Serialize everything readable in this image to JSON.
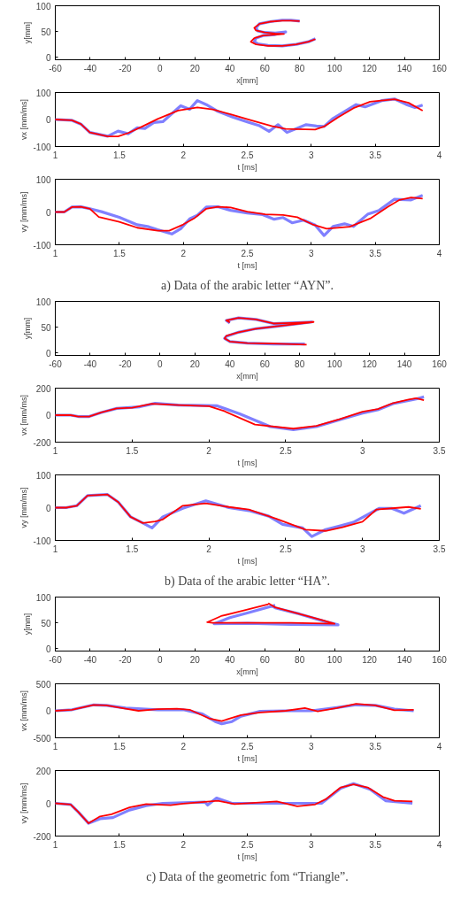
{
  "chart_data": [
    {
      "type": "line",
      "xlabel": "x[mm]",
      "ylabel": "y[mm]",
      "xlim": [
        -60,
        160
      ],
      "xticks": [
        -60,
        -40,
        -20,
        0,
        20,
        40,
        60,
        80,
        100,
        120,
        140,
        160
      ],
      "ylim": [
        -5,
        100
      ],
      "yticks": [
        0,
        50,
        100
      ],
      "series": [
        {
          "color": "#8080ff",
          "x": [
            80,
            75,
            70,
            63,
            57,
            55,
            56,
            60,
            66,
            72,
            66,
            59,
            55,
            54,
            56,
            62,
            70,
            78,
            85,
            89
          ],
          "values": [
            70,
            72,
            72,
            69,
            65,
            57,
            51,
            48,
            47,
            49,
            44,
            42,
            37,
            30,
            26,
            23,
            22,
            25,
            30,
            36
          ]
        },
        {
          "color": "#ff0000",
          "x": [
            80,
            75,
            70,
            63,
            57,
            54,
            55,
            60,
            66,
            71,
            66,
            59,
            54,
            52,
            55,
            62,
            70,
            78,
            85,
            89
          ],
          "values": [
            70,
            71,
            71,
            69,
            65,
            57,
            52,
            48,
            46,
            45,
            44,
            42,
            37,
            30,
            25,
            22,
            22,
            25,
            30,
            35
          ]
        }
      ]
    },
    {
      "type": "line",
      "xlabel": "t [ms]",
      "ylabel": "vx [mm/ms]",
      "xlim": [
        1,
        4
      ],
      "xticks": [
        1,
        1.5,
        2,
        2.5,
        3,
        3.5,
        4
      ],
      "ylim": [
        -100,
        100
      ],
      "yticks": [
        -100,
        0,
        100
      ],
      "series": [
        {
          "color": "#8080ff",
          "x": [
            1,
            1.13,
            1.2,
            1.27,
            1.41,
            1.49,
            1.57,
            1.64,
            1.7,
            1.77,
            1.84,
            1.98,
            2.05,
            2.11,
            2.18,
            2.27,
            2.39,
            2.5,
            2.59,
            2.67,
            2.74,
            2.81,
            2.96,
            3.04,
            3.1,
            3.17,
            3.35,
            3.42,
            3.55,
            3.65,
            3.74,
            3.81,
            3.87
          ],
          "values": [
            0,
            -3,
            -17,
            -48,
            -62,
            -43,
            -53,
            -31,
            -33,
            -11,
            -8,
            51,
            38,
            70,
            55,
            30,
            8,
            -9,
            -22,
            -44,
            -19,
            -48,
            -19,
            -24,
            -26,
            4,
            55,
            47,
            70,
            76,
            56,
            44,
            53
          ]
        },
        {
          "color": "#ff0000",
          "x": [
            1,
            1.13,
            1.2,
            1.27,
            1.41,
            1.49,
            1.57,
            1.68,
            1.8,
            1.96,
            2.11,
            2.23,
            2.37,
            2.53,
            2.69,
            2.8,
            3.03,
            3.1,
            3.21,
            3.33,
            3.46,
            3.65,
            3.76,
            3.87
          ],
          "values": [
            0,
            -3,
            -17,
            -48,
            -63,
            -63,
            -50,
            -26,
            2,
            33,
            45,
            37,
            19,
            -3,
            -24,
            -35,
            -37,
            -26,
            8,
            42,
            66,
            75,
            62,
            33
          ]
        }
      ]
    },
    {
      "type": "line",
      "xlabel": "t [ms]",
      "ylabel": "vy [mm/ms]",
      "xlim": [
        1,
        4
      ],
      "xticks": [
        1,
        1.5,
        2,
        2.5,
        3,
        3.5,
        4
      ],
      "ylim": [
        -100,
        100
      ],
      "yticks": [
        -100,
        0,
        100
      ],
      "annotations": [
        "a) Data of the arabic letter “AYN”."
      ],
      "series": [
        {
          "color": "#8080ff",
          "x": [
            1,
            1.07,
            1.13,
            1.2,
            1.27,
            1.36,
            1.5,
            1.64,
            1.73,
            1.8,
            1.91,
            1.98,
            2.05,
            2.11,
            2.18,
            2.27,
            2.37,
            2.5,
            2.62,
            2.71,
            2.78,
            2.85,
            2.94,
            3.03,
            3.1,
            3.17,
            3.26,
            3.33,
            3.44,
            3.53,
            3.65,
            3.78,
            3.87
          ],
          "values": [
            0,
            0,
            15,
            16,
            10,
            1,
            -16,
            -39,
            -45,
            -54,
            -67,
            -51,
            -21,
            -10,
            15,
            16,
            5,
            -3,
            -8,
            -22,
            -17,
            -33,
            -25,
            -40,
            -72,
            -44,
            -36,
            -44,
            -7,
            5,
            39,
            37,
            51
          ]
        },
        {
          "color": "#ff0000",
          "x": [
            1,
            1.07,
            1.13,
            1.2,
            1.27,
            1.34,
            1.5,
            1.64,
            1.8,
            1.89,
            2,
            2.09,
            2.18,
            2.27,
            2.37,
            2.5,
            2.64,
            2.78,
            2.89,
            3.01,
            3.12,
            3.3,
            3.46,
            3.6,
            3.69,
            3.78,
            3.87
          ],
          "values": [
            0,
            0,
            15,
            16,
            10,
            -15,
            -30,
            -48,
            -57,
            -57,
            -38,
            -18,
            10,
            16,
            14,
            1,
            -7,
            -9,
            -16,
            -38,
            -51,
            -45,
            -20,
            16,
            37,
            44,
            41
          ]
        }
      ]
    },
    {
      "type": "line",
      "xlabel": "x[mm]",
      "ylabel": "y[mm]",
      "xlim": [
        -60,
        160
      ],
      "xticks": [
        -60,
        -40,
        -20,
        0,
        20,
        40,
        60,
        80,
        100,
        120,
        140,
        160
      ],
      "ylim": [
        -5,
        100
      ],
      "yticks": [
        0,
        50,
        100
      ],
      "series": [
        {
          "color": "#8080ff",
          "x": [
            40,
            38,
            45,
            55,
            65,
            75,
            87,
            70,
            55,
            45,
            38,
            37,
            40,
            50,
            65,
            83
          ],
          "values": [
            58,
            63,
            68,
            65,
            57,
            58,
            60,
            53,
            47,
            40,
            32,
            28,
            22,
            19,
            17,
            17
          ]
        },
        {
          "color": "#ff0000",
          "x": [
            40,
            38,
            45,
            55,
            65,
            75,
            88,
            70,
            55,
            45,
            38,
            37,
            40,
            50,
            65,
            84
          ],
          "values": [
            59,
            63,
            68,
            65,
            57,
            58,
            60,
            53,
            47,
            40,
            33,
            28,
            22,
            19,
            18,
            16
          ]
        }
      ]
    },
    {
      "type": "line",
      "xlabel": "t [ms]",
      "ylabel": "vx [mm/ms]",
      "xlim": [
        1,
        3.5
      ],
      "xticks": [
        1,
        1.5,
        2,
        2.5,
        3,
        3.5
      ],
      "ylim": [
        -200,
        200
      ],
      "yticks": [
        -200,
        0,
        200
      ],
      "series": [
        {
          "color": "#8080ff",
          "x": [
            1,
            1.1,
            1.15,
            1.22,
            1.3,
            1.4,
            1.55,
            1.65,
            1.8,
            2.05,
            2.2,
            2.4,
            2.55,
            2.7,
            2.85,
            3.0,
            3.1,
            3.2,
            3.35,
            3.4
          ],
          "values": [
            0,
            0,
            -10,
            -10,
            20,
            50,
            62,
            88,
            75,
            70,
            10,
            -85,
            -108,
            -85,
            -35,
            15,
            40,
            85,
            120,
            135
          ]
        },
        {
          "color": "#ff0000",
          "x": [
            1,
            1.1,
            1.15,
            1.22,
            1.3,
            1.4,
            1.5,
            1.63,
            1.8,
            2.0,
            2.1,
            2.3,
            2.55,
            2.7,
            2.85,
            3.0,
            3.1,
            3.2,
            3.3,
            3.35,
            3.4
          ],
          "values": [
            0,
            0,
            -10,
            -10,
            20,
            50,
            55,
            85,
            75,
            67,
            30,
            -70,
            -100,
            -80,
            -30,
            25,
            45,
            90,
            115,
            125,
            110
          ]
        }
      ]
    },
    {
      "type": "line",
      "xlabel": "t [ms]",
      "ylabel": "vy [mm/ms]",
      "xlim": [
        1,
        3.5
      ],
      "xticks": [
        1,
        1.5,
        2,
        2.5,
        3,
        3.5
      ],
      "ylim": [
        -100,
        100
      ],
      "yticks": [
        -100,
        0,
        100
      ],
      "annotations": [
        "b) Data of the arabic letter “HA”."
      ],
      "series": [
        {
          "color": "#8080ff",
          "x": [
            1,
            1.07,
            1.14,
            1.21,
            1.34,
            1.41,
            1.49,
            1.57,
            1.63,
            1.7,
            1.83,
            1.98,
            2.13,
            2.26,
            2.39,
            2.48,
            2.61,
            2.67,
            2.76,
            2.85,
            2.94,
            3.11,
            3.19,
            3.27,
            3.38
          ],
          "values": [
            0,
            0,
            6,
            37,
            40,
            17,
            -28,
            -47,
            -62,
            -28,
            -2,
            21,
            0,
            -9,
            -26,
            -51,
            -62,
            -88,
            -67,
            -56,
            -45,
            -2,
            -2,
            -17,
            6
          ]
        },
        {
          "color": "#ff0000",
          "x": [
            1,
            1.07,
            1.14,
            1.21,
            1.34,
            1.41,
            1.49,
            1.57,
            1.65,
            1.7,
            1.83,
            1.98,
            2.13,
            2.26,
            2.44,
            2.63,
            2.76,
            2.87,
            3.0,
            3.09,
            3.19,
            3.3,
            3.38
          ],
          "values": [
            0,
            0,
            6,
            37,
            40,
            17,
            -28,
            -47,
            -42,
            -36,
            6,
            13,
            2,
            -6,
            -34,
            -67,
            -71,
            -60,
            -43,
            -6,
            -2,
            2,
            -4
          ]
        }
      ]
    },
    {
      "type": "line",
      "xlabel": "x[mm]",
      "ylabel": "y[mm]",
      "xlim": [
        -60,
        160
      ],
      "xticks": [
        -60,
        -40,
        -20,
        0,
        20,
        40,
        60,
        80,
        100,
        120,
        140,
        160
      ],
      "ylim": [
        -5,
        100
      ],
      "yticks": [
        0,
        50,
        100
      ],
      "series": [
        {
          "color": "#8080ff",
          "x": [
            66,
            50,
            40,
            31,
            50,
            75,
            102,
            95,
            80,
            66,
            64
          ],
          "values": [
            84,
            69,
            60,
            48,
            49,
            47,
            46,
            52,
            67,
            79,
            83
          ]
        },
        {
          "color": "#ff0000",
          "x": [
            62,
            48,
            35,
            27,
            30,
            50,
            75,
            100,
            93,
            80,
            66,
            62
          ],
          "values": [
            86,
            74,
            63,
            51,
            50,
            50,
            50,
            48,
            55,
            67,
            80,
            88
          ]
        }
      ]
    },
    {
      "type": "line",
      "xlabel": "t [ms]",
      "ylabel": "vx [mm/ms]",
      "xlim": [
        1,
        4
      ],
      "xticks": [
        1,
        1.5,
        2,
        2.5,
        3,
        3.5,
        4
      ],
      "ylim": [
        -500,
        500
      ],
      "yticks": [
        -500,
        0,
        500
      ],
      "series": [
        {
          "color": "#8080ff",
          "x": [
            1,
            1.13,
            1.3,
            1.4,
            1.55,
            1.8,
            2.0,
            2.15,
            2.25,
            2.3,
            2.38,
            2.45,
            2.6,
            2.8,
            3.0,
            3.2,
            3.35,
            3.5,
            3.65,
            3.8
          ],
          "values": [
            0,
            20,
            110,
            100,
            50,
            20,
            20,
            -60,
            -200,
            -240,
            -200,
            -100,
            -10,
            0,
            0,
            60,
            110,
            100,
            30,
            0
          ]
        },
        {
          "color": "#ff0000",
          "x": [
            1,
            1.13,
            1.3,
            1.4,
            1.55,
            1.65,
            1.8,
            1.95,
            2.05,
            2.2,
            2.3,
            2.45,
            2.6,
            2.8,
            2.95,
            3.05,
            3.2,
            3.35,
            3.5,
            3.65,
            3.8
          ],
          "values": [
            0,
            20,
            110,
            100,
            40,
            0,
            30,
            40,
            20,
            -140,
            -190,
            -80,
            -30,
            0,
            50,
            -10,
            50,
            130,
            100,
            10,
            20
          ]
        }
      ]
    },
    {
      "type": "line",
      "xlabel": "t [ms]",
      "ylabel": "vy [mm/ms]",
      "xlim": [
        1,
        4
      ],
      "xticks": [
        1,
        1.5,
        2,
        2.5,
        3,
        3.5,
        4
      ],
      "ylim": [
        -200,
        200
      ],
      "yticks": [
        -200,
        0,
        200
      ],
      "annotations": [
        "c) Data of the geometric fom “Triangle”."
      ],
      "series": [
        {
          "color": "#8080ff",
          "x": [
            1,
            1.12,
            1.18,
            1.26,
            1.35,
            1.45,
            1.58,
            1.71,
            1.84,
            2.17,
            2.19,
            2.26,
            2.38,
            2.84,
            3.08,
            3.23,
            3.33,
            3.46,
            3.58,
            3.79
          ],
          "values": [
            0,
            -7,
            -53,
            -122,
            -94,
            -87,
            -41,
            -14,
            0,
            7,
            -11,
            32,
            0,
            0,
            0,
            92,
            120,
            85,
            16,
            0
          ]
        },
        {
          "color": "#ff0000",
          "x": [
            1,
            1.12,
            1.18,
            1.26,
            1.35,
            1.44,
            1.58,
            1.71,
            1.9,
            2.0,
            2.27,
            2.4,
            2.73,
            2.89,
            3.03,
            3.12,
            3.23,
            3.33,
            3.44,
            3.56,
            3.65,
            3.79
          ],
          "values": [
            0,
            -7,
            -53,
            -122,
            -80,
            -67,
            -25,
            -5,
            -12,
            -2,
            16,
            -5,
            11,
            -18,
            -7,
            28,
            97,
            115,
            97,
            39,
            16,
            11
          ]
        }
      ]
    }
  ]
}
